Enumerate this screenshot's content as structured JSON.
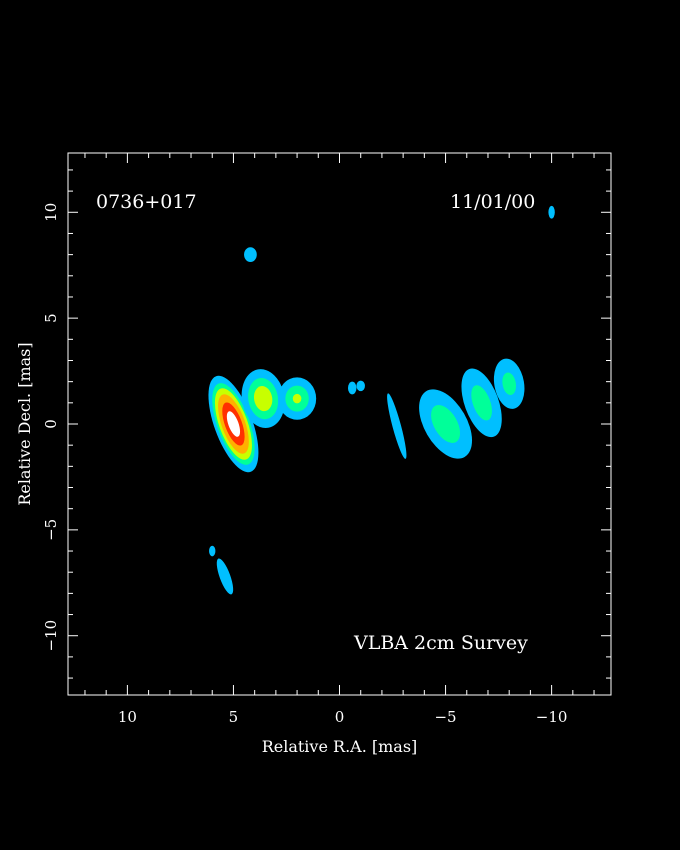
{
  "chart_data": {
    "type": "heatmap",
    "title": "",
    "source_label": "0736+017",
    "date_label": "11/01/00",
    "survey_label": "VLBA 2cm Survey",
    "xlabel": "Relative R.A. [mas]",
    "ylabel": "Relative Decl. [mas]",
    "xlim": [
      12.8,
      -12.8
    ],
    "ylim": [
      -12.8,
      12.8
    ],
    "x_reversed": true,
    "xticks": [
      10,
      5,
      0,
      -5,
      -10
    ],
    "yticks": [
      10,
      5,
      0,
      -5,
      -10
    ],
    "xtick_labels": [
      "10",
      "5",
      "0",
      "−5",
      "−10"
    ],
    "ytick_labels": [
      "10",
      "5",
      "0",
      "−5",
      "−10"
    ],
    "grid": false,
    "background": "#000000",
    "frame_color": "#ffffff",
    "colormap": [
      "#00bfff",
      "#00ff99",
      "#c8ff00",
      "#ffb000",
      "#ff3000",
      "#ffffff"
    ],
    "components": [
      {
        "name": "core",
        "ra": 5.0,
        "dec": 0.0,
        "major": 2.4,
        "minor": 0.9,
        "pa": 20,
        "peak": 1.0
      },
      {
        "name": "inner-jet",
        "ra": 3.6,
        "dec": 1.2,
        "major": 1.4,
        "minor": 1.0,
        "pa": 10,
        "peak": 0.55
      },
      {
        "name": "jet-knot-2",
        "ra": 2.0,
        "dec": 1.2,
        "major": 1.0,
        "minor": 0.9,
        "pa": 0,
        "peak": 0.45
      },
      {
        "name": "jet-blob-1",
        "ra": -0.6,
        "dec": 1.7,
        "major": 0.3,
        "minor": 0.2,
        "pa": 0,
        "peak": 0.2
      },
      {
        "name": "jet-blob-2",
        "ra": -1.0,
        "dec": 1.8,
        "major": 0.25,
        "minor": 0.2,
        "pa": 0,
        "peak": 0.2
      },
      {
        "name": "jet-streak",
        "ra": -2.7,
        "dec": -0.1,
        "major": 1.6,
        "minor": 0.2,
        "pa": 15,
        "peak": 0.2
      },
      {
        "name": "outer-jet-1",
        "ra": -5.0,
        "dec": 0.0,
        "major": 1.8,
        "minor": 1.0,
        "pa": 30,
        "peak": 0.4
      },
      {
        "name": "outer-jet-2",
        "ra": -6.7,
        "dec": 1.0,
        "major": 1.7,
        "minor": 0.8,
        "pa": 20,
        "peak": 0.38
      },
      {
        "name": "outer-jet-3",
        "ra": -8.0,
        "dec": 1.9,
        "major": 1.2,
        "minor": 0.7,
        "pa": 10,
        "peak": 0.35
      },
      {
        "name": "north-spot",
        "ra": 4.2,
        "dec": 8.0,
        "major": 0.35,
        "minor": 0.3,
        "pa": 0,
        "peak": 0.22
      },
      {
        "name": "south-spot",
        "ra": 5.4,
        "dec": -7.2,
        "major": 0.9,
        "minor": 0.25,
        "pa": 20,
        "peak": 0.22
      },
      {
        "name": "south-spot-small",
        "ra": 6.0,
        "dec": -6.0,
        "major": 0.25,
        "minor": 0.15,
        "pa": 0,
        "peak": 0.15
      },
      {
        "name": "far-west-spot",
        "ra": -10.0,
        "dec": 10.0,
        "major": 0.3,
        "minor": 0.15,
        "pa": 0,
        "peak": 0.15
      }
    ]
  }
}
